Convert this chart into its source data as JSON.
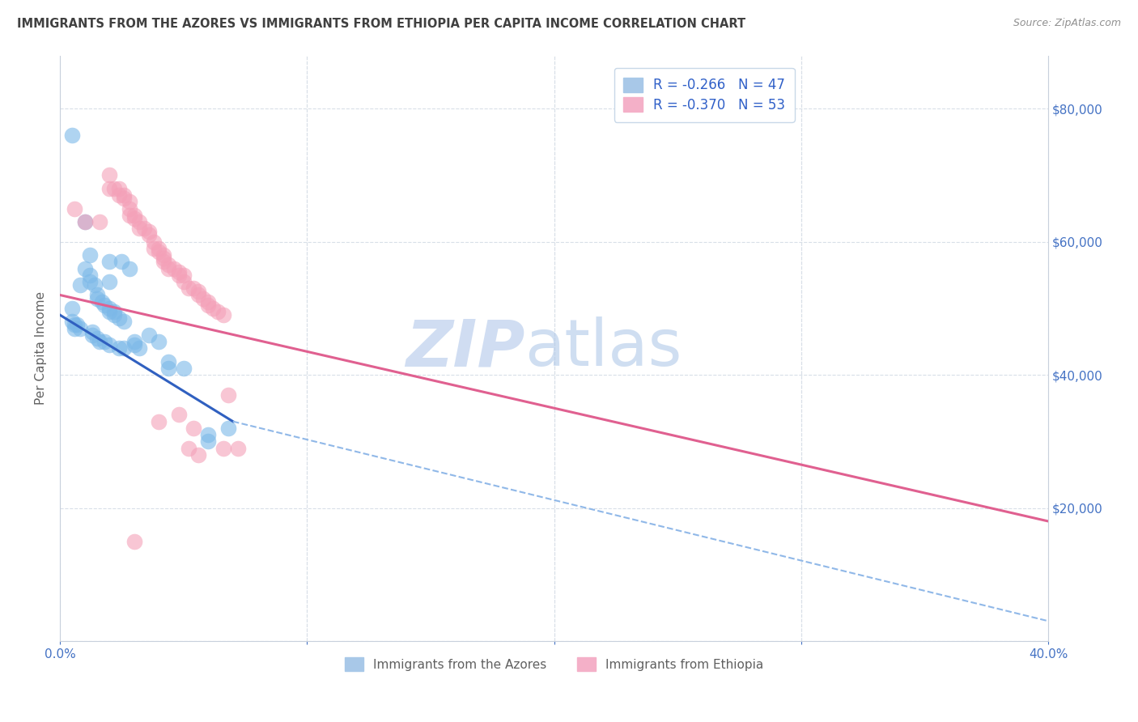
{
  "title": "IMMIGRANTS FROM THE AZORES VS IMMIGRANTS FROM ETHIOPIA PER CAPITA INCOME CORRELATION CHART",
  "source": "Source: ZipAtlas.com",
  "ylabel": "Per Capita Income",
  "azores_color": "#7bb8e8",
  "ethiopia_color": "#f4a0b8",
  "azores_line_color": "#3060c0",
  "ethiopia_line_color": "#e06090",
  "dashed_line_color": "#90b8e8",
  "azores_scatter": [
    [
      0.005,
      76000
    ],
    [
      0.01,
      63000
    ],
    [
      0.012,
      58000
    ],
    [
      0.02,
      57000
    ],
    [
      0.02,
      54000
    ],
    [
      0.025,
      57000
    ],
    [
      0.028,
      56000
    ],
    [
      0.005,
      50000
    ],
    [
      0.005,
      48000
    ],
    [
      0.007,
      47500
    ],
    [
      0.01,
      56000
    ],
    [
      0.012,
      55000
    ],
    [
      0.008,
      53500
    ],
    [
      0.012,
      54000
    ],
    [
      0.014,
      53500
    ],
    [
      0.015,
      52000
    ],
    [
      0.015,
      51500
    ],
    [
      0.017,
      51000
    ],
    [
      0.018,
      50500
    ],
    [
      0.02,
      50000
    ],
    [
      0.02,
      49500
    ],
    [
      0.022,
      49500
    ],
    [
      0.022,
      49000
    ],
    [
      0.024,
      48500
    ],
    [
      0.026,
      48000
    ],
    [
      0.006,
      47500
    ],
    [
      0.006,
      47000
    ],
    [
      0.008,
      47000
    ],
    [
      0.013,
      46500
    ],
    [
      0.013,
      46000
    ],
    [
      0.015,
      45500
    ],
    [
      0.016,
      45000
    ],
    [
      0.018,
      45000
    ],
    [
      0.02,
      44500
    ],
    [
      0.024,
      44000
    ],
    [
      0.026,
      44000
    ],
    [
      0.03,
      45000
    ],
    [
      0.03,
      44500
    ],
    [
      0.032,
      44000
    ],
    [
      0.036,
      46000
    ],
    [
      0.04,
      45000
    ],
    [
      0.044,
      42000
    ],
    [
      0.044,
      41000
    ],
    [
      0.05,
      41000
    ],
    [
      0.06,
      30000
    ],
    [
      0.06,
      31000
    ],
    [
      0.068,
      32000
    ]
  ],
  "ethiopia_scatter": [
    [
      0.006,
      65000
    ],
    [
      0.01,
      63000
    ],
    [
      0.016,
      63000
    ],
    [
      0.02,
      70000
    ],
    [
      0.02,
      68000
    ],
    [
      0.022,
      68000
    ],
    [
      0.024,
      68000
    ],
    [
      0.024,
      67000
    ],
    [
      0.026,
      67000
    ],
    [
      0.026,
      66500
    ],
    [
      0.028,
      66000
    ],
    [
      0.028,
      65000
    ],
    [
      0.028,
      64000
    ],
    [
      0.03,
      64000
    ],
    [
      0.03,
      63500
    ],
    [
      0.032,
      63000
    ],
    [
      0.032,
      62000
    ],
    [
      0.034,
      62000
    ],
    [
      0.036,
      61500
    ],
    [
      0.036,
      61000
    ],
    [
      0.038,
      60000
    ],
    [
      0.038,
      59000
    ],
    [
      0.04,
      59000
    ],
    [
      0.04,
      58500
    ],
    [
      0.042,
      58000
    ],
    [
      0.042,
      57500
    ],
    [
      0.042,
      57000
    ],
    [
      0.044,
      56500
    ],
    [
      0.044,
      56000
    ],
    [
      0.046,
      56000
    ],
    [
      0.048,
      55500
    ],
    [
      0.048,
      55000
    ],
    [
      0.05,
      55000
    ],
    [
      0.05,
      54000
    ],
    [
      0.052,
      53000
    ],
    [
      0.054,
      53000
    ],
    [
      0.056,
      52500
    ],
    [
      0.056,
      52000
    ],
    [
      0.058,
      51500
    ],
    [
      0.06,
      51000
    ],
    [
      0.06,
      50500
    ],
    [
      0.062,
      50000
    ],
    [
      0.064,
      49500
    ],
    [
      0.066,
      49000
    ],
    [
      0.048,
      34000
    ],
    [
      0.054,
      32000
    ],
    [
      0.052,
      29000
    ],
    [
      0.056,
      28000
    ],
    [
      0.068,
      37000
    ],
    [
      0.03,
      15000
    ],
    [
      0.04,
      33000
    ],
    [
      0.066,
      29000
    ],
    [
      0.072,
      29000
    ]
  ],
  "azores_line": {
    "x0": 0.0,
    "y0": 49000,
    "x1": 0.07,
    "y1": 33000
  },
  "azores_line_end": 0.07,
  "ethiopia_line": {
    "x0": 0.0,
    "y0": 52000,
    "x1": 0.4,
    "y1": 18000
  },
  "dashed_line": {
    "x0": 0.07,
    "y0": 33000,
    "x1": 0.4,
    "y1": 3000
  },
  "xlim": [
    0.0,
    0.4
  ],
  "ylim": [
    0,
    88000
  ],
  "yticks": [
    0,
    20000,
    40000,
    60000,
    80000
  ],
  "xtick_positions": [
    0.0,
    0.1,
    0.2,
    0.3,
    0.4
  ],
  "xtick_labels": [
    "0.0%",
    "",
    "",
    "",
    "40.0%"
  ],
  "grid_color": "#d8dfe8",
  "background_color": "#ffffff",
  "title_color": "#404040",
  "title_fontsize": 10.5,
  "axis_label_color": "#606060",
  "tick_color": "#4472c4",
  "watermark_zip_color": "#c8d8f0",
  "watermark_atlas_color": "#b0c8e8"
}
